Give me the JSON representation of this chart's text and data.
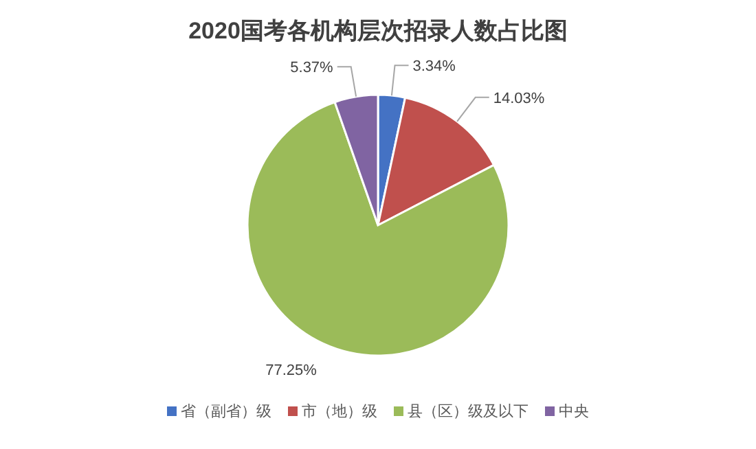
{
  "chart_data": {
    "type": "pie",
    "title": "2020国考各机构层次招录人数占比图",
    "categories": [
      "省（副省）级",
      "市（地）级",
      "县（区）级及以下",
      "中央"
    ],
    "values": [
      3.34,
      14.03,
      77.25,
      5.37
    ],
    "colors": [
      "#4472c4",
      "#c0504d",
      "#9bbb59",
      "#8064a2"
    ],
    "value_labels": [
      "3.34%",
      "14.03%",
      "77.25%",
      "5.37%"
    ],
    "legend": "bottom"
  }
}
